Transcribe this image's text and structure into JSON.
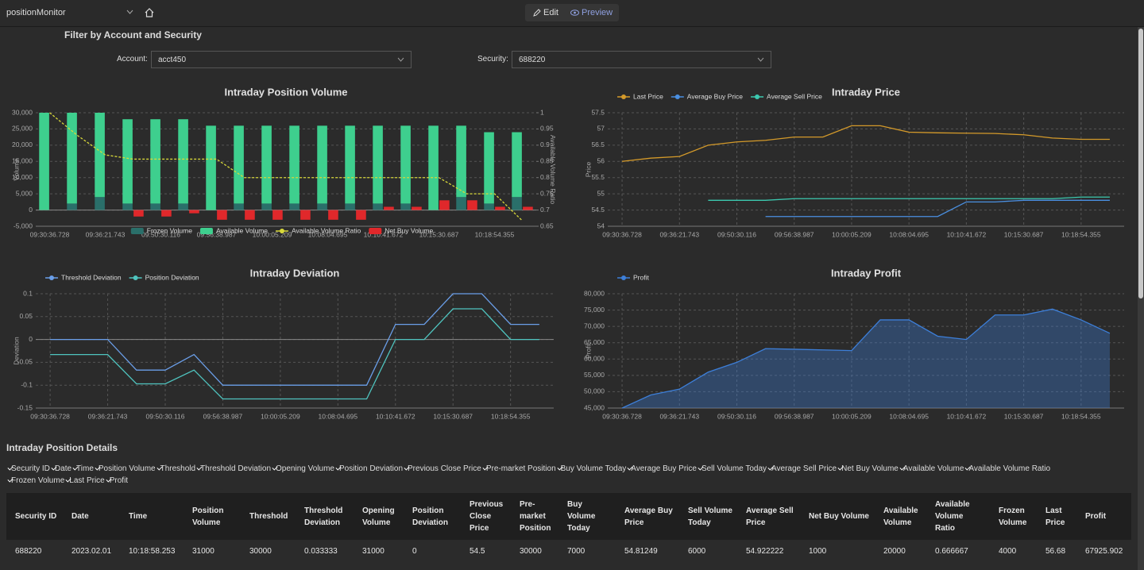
{
  "toolbar": {
    "app": "positionMonitor",
    "edit": "Edit",
    "preview": "Preview"
  },
  "filter": {
    "title": "Filter by Account and Security",
    "account_label": "Account:",
    "account_value": "acct450",
    "security_label": "Security:",
    "security_value": "688220"
  },
  "chart_data": [
    {
      "type": "bar",
      "title": "Intraday Position Volume",
      "y_label": "Volume",
      "y2_label": "Available Volume Ratio",
      "categories": [
        "09:30:36.728",
        null,
        "09:36:21.743",
        null,
        "09:50:30.116",
        null,
        "09:56:38.987",
        null,
        "10:00:05.209",
        null,
        "10:08:04.695",
        null,
        "10:10:41.672",
        null,
        "10:15:30.687",
        null,
        "10:18:54.355",
        null
      ],
      "series": [
        {
          "name": "Frozen Volume",
          "color": "#2a6f6a",
          "stacked": true,
          "values": [
            0,
            2000,
            4000,
            2000,
            2000,
            2000,
            0,
            2000,
            2000,
            2000,
            2000,
            2000,
            2000,
            2000,
            0,
            4000,
            2000,
            4000
          ]
        },
        {
          "name": "Available Volume",
          "color": "#3ecf8e",
          "stacked": true,
          "values": [
            30000,
            28000,
            26000,
            26000,
            26000,
            26000,
            26000,
            24000,
            24000,
            24000,
            24000,
            24000,
            24000,
            24000,
            26000,
            22000,
            22000,
            20000
          ]
        },
        {
          "name": "Available Volume Ratio",
          "color": "#d8d83a",
          "type": "line",
          "axis": "y2",
          "dashed": true,
          "values": [
            1,
            0.93,
            0.87,
            0.857,
            0.857,
            0.857,
            0.857,
            0.8,
            0.8,
            0.8,
            0.8,
            0.8,
            0.8,
            0.8,
            0.8,
            0.75,
            0.75,
            0.667
          ]
        },
        {
          "name": "Net Buy Volume",
          "color": "#e0282b",
          "values": [
            0,
            0,
            0,
            -2000,
            -2000,
            -1000,
            -3000,
            -3000,
            -3000,
            -3000,
            -3000,
            -3000,
            1000,
            1000,
            3000,
            3000,
            1000,
            1000
          ]
        }
      ],
      "ylim": [
        -5000,
        30000
      ],
      "yticks": [
        {
          "value": -5000,
          "label": "-5,000"
        },
        0,
        {
          "value": 5000,
          "label": "5,000"
        },
        {
          "value": 10000,
          "label": "10,000"
        },
        {
          "value": 15000,
          "label": "15,000"
        },
        {
          "value": 20000,
          "label": "20,000"
        },
        {
          "value": 25000,
          "label": "25,000"
        },
        {
          "value": 30000,
          "label": "30,000"
        }
      ],
      "y2lim": [
        0.65,
        1
      ],
      "y2ticks": [
        0.65,
        0.7,
        0.75,
        0.8,
        0.85,
        0.9,
        0.95,
        1
      ],
      "grid": true,
      "legend": "bottom"
    },
    {
      "type": "line",
      "title": "Intraday Price",
      "y_label": "Price",
      "categories": [
        "09:30:36.728",
        null,
        "09:36:21.743",
        null,
        "09:50:30.116",
        null,
        "09:56:38.987",
        null,
        "10:00:05.209",
        null,
        "10:08:04.695",
        null,
        "10:10:41.672",
        null,
        "10:15:30.687",
        null,
        "10:18:54.355",
        null
      ],
      "series": [
        {
          "name": "Last Price",
          "color": "#d49a2a",
          "values": [
            56,
            56.1,
            56.15,
            56.5,
            56.6,
            56.65,
            56.75,
            56.75,
            57.1,
            57.1,
            56.9,
            56.88,
            56.87,
            56.86,
            56.82,
            56.72,
            56.68,
            56.68
          ]
        },
        {
          "name": "Average Buy Price",
          "color": "#4a90e2",
          "values": [
            null,
            null,
            null,
            null,
            null,
            54.3,
            54.3,
            54.3,
            54.3,
            54.3,
            54.3,
            54.3,
            54.75,
            54.75,
            54.8,
            54.8,
            54.8,
            54.8
          ]
        },
        {
          "name": "Average Sell Price",
          "color": "#3cc9b0",
          "values": [
            null,
            null,
            null,
            54.8,
            54.8,
            54.8,
            54.85,
            54.85,
            54.85,
            54.85,
            54.85,
            54.85,
            54.85,
            54.85,
            54.85,
            54.85,
            54.9,
            54.9
          ]
        }
      ],
      "ylim": [
        54,
        57.5
      ],
      "yticks": [
        54,
        54.5,
        55,
        55.5,
        56,
        56.5,
        57,
        57.5
      ],
      "grid": true,
      "legend": "top-left"
    },
    {
      "type": "line",
      "title": "Intraday Deviation",
      "y_label": "Deviation",
      "categories": [
        "09:30:36.728",
        null,
        "09:36:21.743",
        null,
        "09:50:30.116",
        null,
        "09:56:38.987",
        null,
        "10:00:05.209",
        null,
        "10:08:04.695",
        null,
        "10:10:41.672",
        null,
        "10:15:30.687",
        null,
        "10:18:54.355",
        null
      ],
      "series": [
        {
          "name": "Threshold Deviation",
          "color": "#6a9ee8",
          "values": [
            0,
            0,
            0,
            -0.067,
            -0.067,
            -0.033,
            -0.1,
            -0.1,
            -0.1,
            -0.1,
            -0.1,
            -0.1,
            0.033,
            0.033,
            0.1,
            0.1,
            0.033,
            0.033
          ]
        },
        {
          "name": "Position Deviation",
          "color": "#4fc4bf",
          "values": [
            -0.033,
            -0.033,
            -0.033,
            -0.097,
            -0.097,
            -0.067,
            -0.13,
            -0.13,
            -0.13,
            -0.13,
            -0.13,
            -0.13,
            0,
            0,
            0.067,
            0.067,
            0,
            0
          ]
        }
      ],
      "ylim": [
        -0.15,
        0.1
      ],
      "yticks": [
        -0.15,
        -0.1,
        -0.05,
        0,
        0.05,
        0.1
      ],
      "grid": true,
      "legend": "top-left"
    },
    {
      "type": "area",
      "title": "Intraday Profit",
      "y_label": "Profit",
      "categories": [
        "09:30:36.728",
        null,
        "09:36:21.743",
        null,
        "09:50:30.116",
        null,
        "09:56:38.987",
        null,
        "10:00:05.209",
        null,
        "10:08:04.695",
        null,
        "10:10:41.672",
        null,
        "10:15:30.687",
        null,
        "10:18:54.355",
        null
      ],
      "series": [
        {
          "name": "Profit",
          "color": "#3d7fd9",
          "values": [
            45000,
            49000,
            50800,
            56000,
            59000,
            63200,
            63000,
            62800,
            62600,
            72000,
            72000,
            67000,
            66000,
            73500,
            73500,
            75300,
            72000,
            67900
          ]
        }
      ],
      "ylim": [
        45000,
        80000
      ],
      "yticks": [
        {
          "value": 45000,
          "label": "45,000"
        },
        {
          "value": 50000,
          "label": "50,000"
        },
        {
          "value": 55000,
          "label": "55,000"
        },
        {
          "value": 60000,
          "label": "60,000"
        },
        {
          "value": 65000,
          "label": "65,000"
        },
        {
          "value": 70000,
          "label": "70,000"
        },
        {
          "value": 75000,
          "label": "75,000"
        },
        {
          "value": 80000,
          "label": "80,000"
        }
      ],
      "grid": true,
      "legend": "top-left"
    }
  ],
  "details": {
    "title": "Intraday Position Details",
    "columns": [
      "Security ID",
      "Date",
      "Time",
      "Position Volume",
      "Threshold",
      "Threshold Deviation",
      "Opening Volume",
      "Position Deviation",
      "Previous Close Price",
      "Pre-market Position",
      "Buy Volume Today",
      "Average Buy Price",
      "Sell Volume Today",
      "Average Sell Price",
      "Net Buy Volume",
      "Available Volume",
      "Available Volume Ratio",
      "Frozen Volume",
      "Last Price",
      "Profit"
    ],
    "rows": [
      [
        "688220",
        "2023.02.01",
        "10:18:58.253",
        "31000",
        "30000",
        "0.033333",
        "31000",
        "0",
        "54.5",
        "30000",
        "7000",
        "54.81249",
        "6000",
        "54.922222",
        "1000",
        "20000",
        "0.666667",
        "4000",
        "56.68",
        "67925.902"
      ]
    ]
  }
}
